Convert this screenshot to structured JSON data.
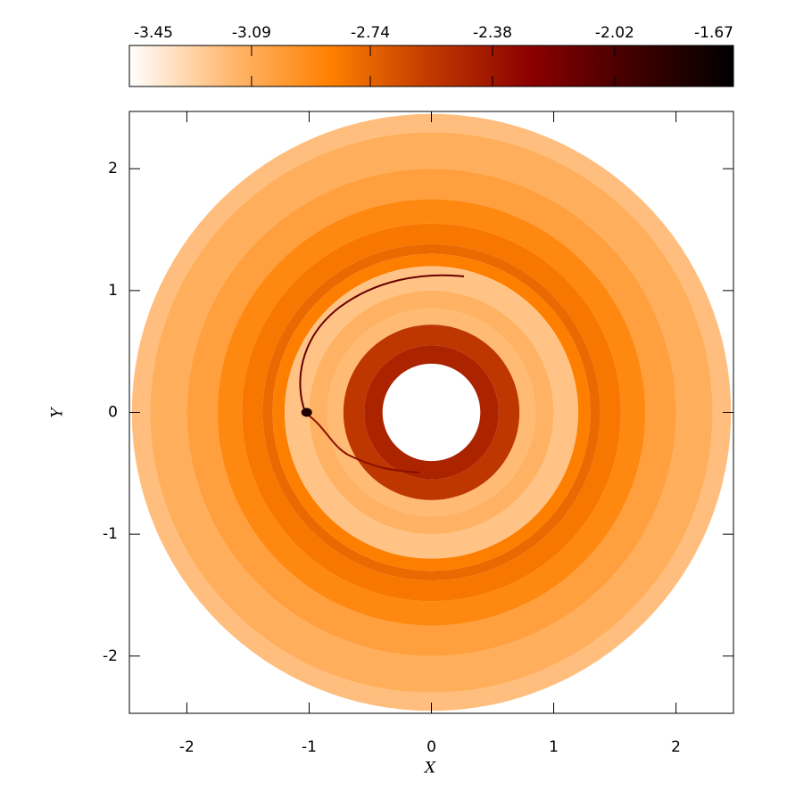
{
  "chart_data": {
    "type": "disk-map",
    "xlabel": "X",
    "ylabel": "Y",
    "xlim": [
      -2.47,
      2.47
    ],
    "ylim": [
      -2.47,
      2.47
    ],
    "xticks": [
      -2,
      -1,
      0,
      1,
      2
    ],
    "yticks": [
      -2,
      -1,
      0,
      1,
      2
    ],
    "colorbar": {
      "clim": [
        -3.45,
        -1.67
      ],
      "ticks": [
        -3.45,
        -3.09,
        -2.74,
        -2.38,
        -2.02,
        -1.67
      ],
      "colors": [
        "#ffffff",
        "#ffb870",
        "#ff8000",
        "#c03800",
        "#8a0000",
        "#400000",
        "#000000"
      ]
    },
    "rings": {
      "r_outer": [
        2.45,
        2.3,
        2.0,
        1.75,
        1.55,
        1.38,
        1.3,
        1.2,
        1.0,
        0.85,
        0.72,
        0.55
      ],
      "r_inner": [
        2.3,
        2.0,
        1.75,
        1.55,
        1.38,
        1.3,
        1.2,
        1.0,
        0.85,
        0.72,
        0.55,
        0.4
      ],
      "values": [
        -3.18,
        -3.1,
        -3.02,
        -2.9,
        -2.82,
        -2.76,
        -2.85,
        -3.2,
        -3.12,
        -3.16,
        -2.55,
        -2.45
      ]
    },
    "planet": {
      "x": -1.02,
      "y": 0.0
    }
  }
}
